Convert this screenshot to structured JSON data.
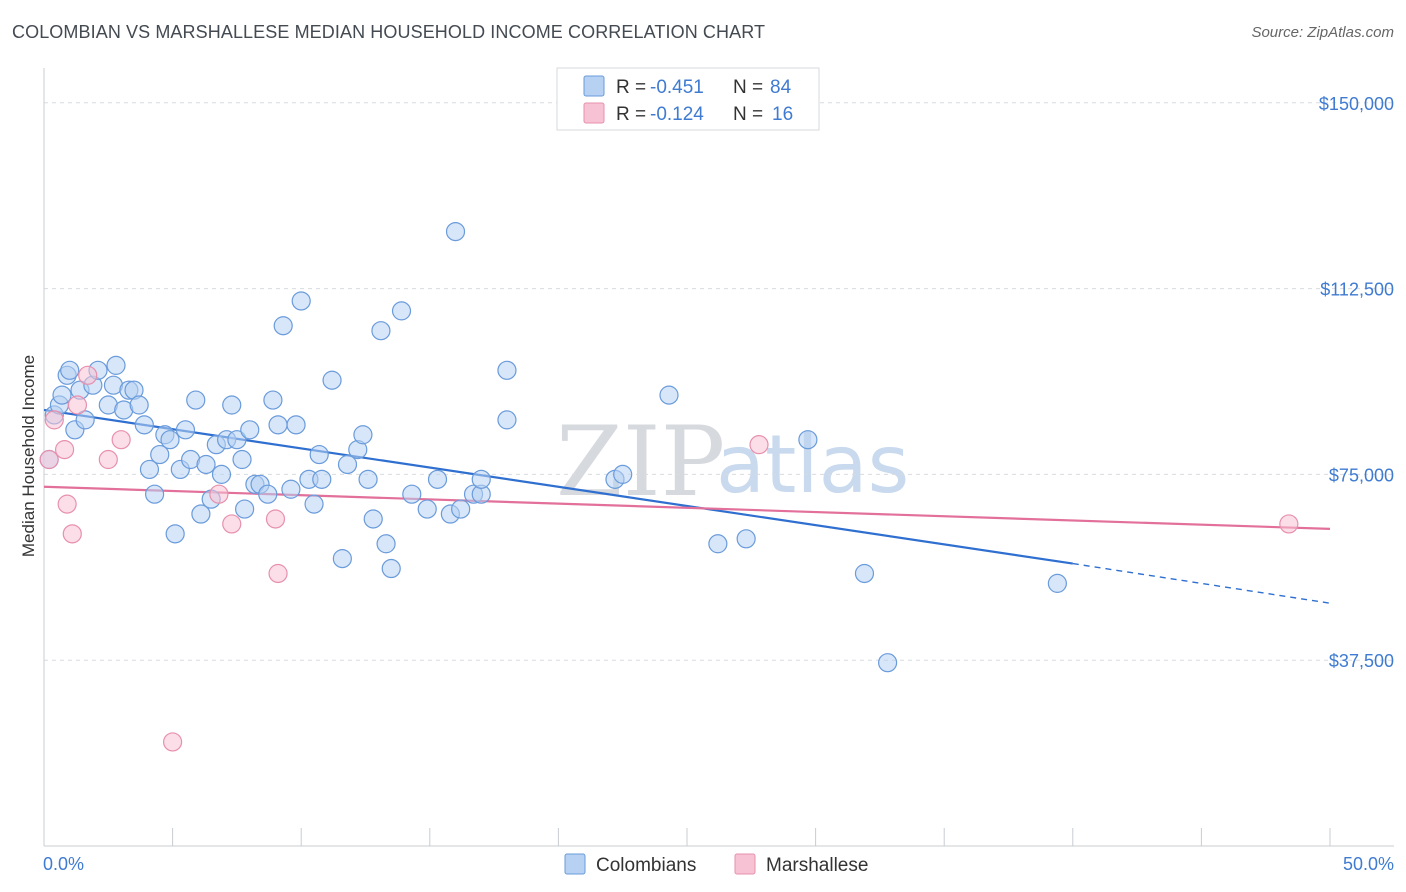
{
  "header": {
    "title": "COLOMBIAN VS MARSHALLESE MEDIAN HOUSEHOLD INCOME CORRELATION CHART",
    "source": "Source: ZipAtlas.com"
  },
  "watermark": {
    "zip": "ZIP",
    "atlas": "atlas"
  },
  "colors": {
    "colombians_fill": "#b7d1f3",
    "colombians_stroke": "#6a9bdb",
    "colombians_line": "#2f6fd0",
    "marshallese_fill": "#f7c3d4",
    "marshallese_stroke": "#e790ad",
    "marshallese_line": "#e2709a",
    "grid": "#d8dbe0",
    "axis_label": "#3f7bd1"
  },
  "legend": {
    "rows": [
      {
        "r_label": "R = ",
        "r_value": "-0.451",
        "n_label": "N = ",
        "n_value": "84"
      },
      {
        "r_label": "R = ",
        "r_value": "-0.124",
        "n_label": "N = ",
        "n_value": "16"
      }
    ]
  },
  "bottom_legend": {
    "items": [
      "Colombians",
      "Marshallese"
    ]
  },
  "chart_data": {
    "type": "scatter",
    "title": "COLOMBIAN VS MARSHALLESE MEDIAN HOUSEHOLD INCOME CORRELATION CHART",
    "ylabel": "Median Household Income",
    "xlabel": "",
    "xlim": [
      0,
      50
    ],
    "ylim": [
      0,
      155000
    ],
    "x_tick_labels": [
      "0.0%",
      "50.0%"
    ],
    "y_ticks": [
      37500,
      75000,
      112500,
      150000
    ],
    "y_tick_labels": [
      "$37,500",
      "$75,000",
      "$112,500",
      "$150,000"
    ],
    "grid": true,
    "legend_position": "top-center",
    "series": [
      {
        "name": "Colombians",
        "r": -0.451,
        "n": 84,
        "trend": {
          "x0": 0,
          "y0": 88000,
          "x1": 40,
          "y1": 57000,
          "dashed_to_x": 50,
          "dashed_to_y": 49000
        },
        "points": [
          [
            0.2,
            78000
          ],
          [
            0.4,
            87000
          ],
          [
            0.6,
            89000
          ],
          [
            0.7,
            91000
          ],
          [
            0.9,
            95000
          ],
          [
            1.0,
            96000
          ],
          [
            1.2,
            84000
          ],
          [
            1.4,
            92000
          ],
          [
            1.6,
            86000
          ],
          [
            1.9,
            93000
          ],
          [
            2.1,
            96000
          ],
          [
            2.5,
            89000
          ],
          [
            2.7,
            93000
          ],
          [
            2.8,
            97000
          ],
          [
            3.1,
            88000
          ],
          [
            3.3,
            92000
          ],
          [
            3.5,
            92000
          ],
          [
            3.7,
            89000
          ],
          [
            3.9,
            85000
          ],
          [
            4.1,
            76000
          ],
          [
            4.3,
            71000
          ],
          [
            4.5,
            79000
          ],
          [
            4.7,
            83000
          ],
          [
            4.9,
            82000
          ],
          [
            5.1,
            63000
          ],
          [
            5.3,
            76000
          ],
          [
            5.5,
            84000
          ],
          [
            5.7,
            78000
          ],
          [
            5.9,
            90000
          ],
          [
            6.1,
            67000
          ],
          [
            6.3,
            77000
          ],
          [
            6.5,
            70000
          ],
          [
            6.7,
            81000
          ],
          [
            6.9,
            75000
          ],
          [
            7.1,
            82000
          ],
          [
            7.3,
            89000
          ],
          [
            7.5,
            82000
          ],
          [
            7.7,
            78000
          ],
          [
            7.8,
            68000
          ],
          [
            8.0,
            84000
          ],
          [
            8.2,
            73000
          ],
          [
            8.4,
            73000
          ],
          [
            8.7,
            71000
          ],
          [
            8.9,
            90000
          ],
          [
            9.1,
            85000
          ],
          [
            9.3,
            105000
          ],
          [
            9.6,
            72000
          ],
          [
            9.8,
            85000
          ],
          [
            10.0,
            110000
          ],
          [
            10.3,
            74000
          ],
          [
            10.5,
            69000
          ],
          [
            10.8,
            74000
          ],
          [
            10.7,
            79000
          ],
          [
            11.2,
            94000
          ],
          [
            11.6,
            58000
          ],
          [
            11.8,
            77000
          ],
          [
            12.2,
            80000
          ],
          [
            12.4,
            83000
          ],
          [
            12.6,
            74000
          ],
          [
            12.8,
            66000
          ],
          [
            13.1,
            104000
          ],
          [
            13.3,
            61000
          ],
          [
            13.5,
            56000
          ],
          [
            13.9,
            108000
          ],
          [
            14.3,
            71000
          ],
          [
            14.9,
            68000
          ],
          [
            15.3,
            74000
          ],
          [
            15.8,
            67000
          ],
          [
            16.2,
            68000
          ],
          [
            16.0,
            124000
          ],
          [
            16.7,
            71000
          ],
          [
            17.0,
            71000
          ],
          [
            17.0,
            74000
          ],
          [
            18.0,
            86000
          ],
          [
            18.0,
            96000
          ],
          [
            22.2,
            74000
          ],
          [
            22.5,
            75000
          ],
          [
            24.3,
            91000
          ],
          [
            26.2,
            61000
          ],
          [
            27.3,
            62000
          ],
          [
            29.7,
            82000
          ],
          [
            31.9,
            55000
          ],
          [
            32.8,
            37000
          ],
          [
            39.4,
            53000
          ]
        ]
      },
      {
        "name": "Marshallese",
        "r": -0.124,
        "n": 16,
        "trend": {
          "x0": 0,
          "y0": 72500,
          "x1": 50,
          "y1": 64000
        },
        "points": [
          [
            0.2,
            78000
          ],
          [
            0.4,
            86000
          ],
          [
            0.8,
            80000
          ],
          [
            0.9,
            69000
          ],
          [
            1.1,
            63000
          ],
          [
            1.3,
            89000
          ],
          [
            1.7,
            95000
          ],
          [
            2.5,
            78000
          ],
          [
            3.0,
            82000
          ],
          [
            6.8,
            71000
          ],
          [
            7.3,
            65000
          ],
          [
            9.0,
            66000
          ],
          [
            9.1,
            55000
          ],
          [
            5.0,
            21000
          ],
          [
            27.8,
            81000
          ],
          [
            48.4,
            65000
          ]
        ]
      }
    ]
  }
}
